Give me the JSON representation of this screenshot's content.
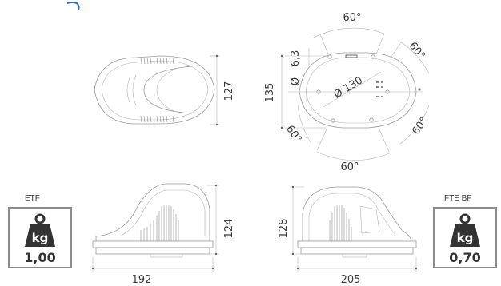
{
  "views": {
    "top_left": {
      "height": "127"
    },
    "top_right": {
      "angle_top": "60°",
      "angle_right_top": "60°",
      "angle_right_bottom": "60°",
      "angle_left_bottom": "60°",
      "angle_bottom": "60°",
      "hole_label": "6,3",
      "phi_small": "Ø",
      "diameter_label": "Ø 130",
      "height": "135"
    },
    "side_left": {
      "width": "192",
      "height": "124"
    },
    "side_right": {
      "width": "205",
      "height": "128"
    }
  },
  "weights": [
    {
      "label": "ETF",
      "value": "1,00",
      "icon": "kg-weight-icon"
    },
    {
      "label": "FTE BF",
      "value": "0,70",
      "icon": "kg-weight-icon"
    }
  ],
  "icon_text": "kg",
  "colors": {
    "line": "#9a9a9a",
    "box_border": "#8c8c8c",
    "text": "#333333"
  }
}
